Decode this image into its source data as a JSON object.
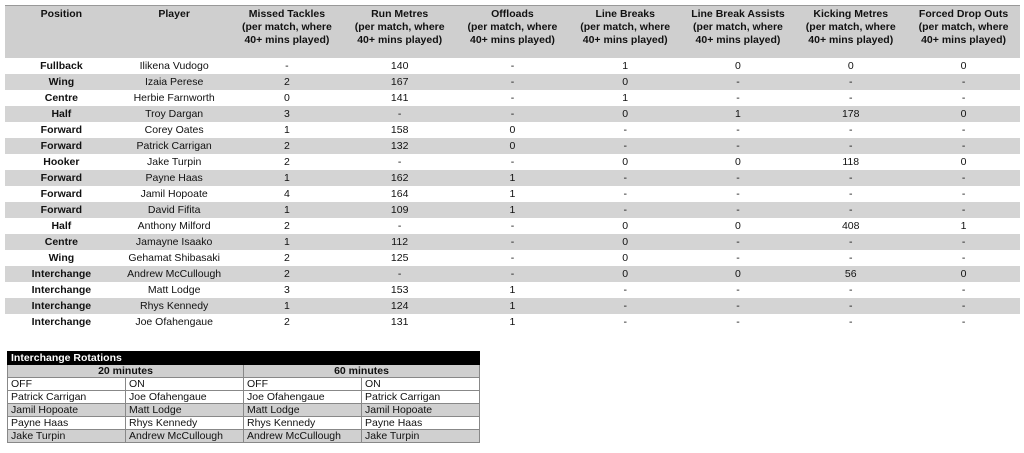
{
  "stats": {
    "headers": [
      "Position",
      "Player",
      "Missed Tackles\n(per match, where\n40+ mins played)",
      "Run Metres\n(per match, where\n40+ mins played)",
      "Offloads\n(per match, where\n40+ mins played)",
      "Line Breaks\n(per match, where\n40+ mins played)",
      "Line Break Assists\n(per match, where\n40+ mins played)",
      "Kicking Metres\n(per match, where\n40+ mins played)",
      "Forced Drop Outs\n(per match, where\n40+ mins played)"
    ],
    "rows": [
      [
        "Fullback",
        "Ilikena Vudogo",
        "-",
        "140",
        "-",
        "1",
        "0",
        "0",
        "0"
      ],
      [
        "Wing",
        "Izaia Perese",
        "2",
        "167",
        "-",
        "0",
        "-",
        "-",
        "-"
      ],
      [
        "Centre",
        "Herbie Farnworth",
        "0",
        "141",
        "-",
        "1",
        "-",
        "-",
        "-"
      ],
      [
        "Half",
        "Troy Dargan",
        "3",
        "-",
        "-",
        "0",
        "1",
        "178",
        "0"
      ],
      [
        "Forward",
        "Corey Oates",
        "1",
        "158",
        "0",
        "-",
        "-",
        "-",
        "-"
      ],
      [
        "Forward",
        "Patrick Carrigan",
        "2",
        "132",
        "0",
        "-",
        "-",
        "-",
        "-"
      ],
      [
        "Hooker",
        "Jake Turpin",
        "2",
        "-",
        "-",
        "0",
        "0",
        "118",
        "0"
      ],
      [
        "Forward",
        "Payne Haas",
        "1",
        "162",
        "1",
        "-",
        "-",
        "-",
        "-"
      ],
      [
        "Forward",
        "Jamil Hopoate",
        "4",
        "164",
        "1",
        "-",
        "-",
        "-",
        "-"
      ],
      [
        "Forward",
        "David Fifita",
        "1",
        "109",
        "1",
        "-",
        "-",
        "-",
        "-"
      ],
      [
        "Half",
        "Anthony Milford",
        "2",
        "-",
        "-",
        "0",
        "0",
        "408",
        "1"
      ],
      [
        "Centre",
        "Jamayne Isaako",
        "1",
        "112",
        "-",
        "0",
        "-",
        "-",
        "-"
      ],
      [
        "Wing",
        "Gehamat Shibasaki",
        "2",
        "125",
        "-",
        "0",
        "-",
        "-",
        "-"
      ],
      [
        "Interchange",
        "Andrew McCullough",
        "2",
        "-",
        "-",
        "0",
        "0",
        "56",
        "0"
      ],
      [
        "Interchange",
        "Matt Lodge",
        "3",
        "153",
        "1",
        "-",
        "-",
        "-",
        "-"
      ],
      [
        "Interchange",
        "Rhys Kennedy",
        "1",
        "124",
        "1",
        "-",
        "-",
        "-",
        "-"
      ],
      [
        "Interchange",
        "Joe Ofahengaue",
        "2",
        "131",
        "1",
        "-",
        "-",
        "-",
        "-"
      ]
    ]
  },
  "rotations": {
    "title": "Interchange Rotations",
    "periods": [
      "20 minutes",
      "60 minutes"
    ],
    "columns": [
      "OFF",
      "ON",
      "OFF",
      "ON"
    ],
    "rows": [
      [
        "Patrick Carrigan",
        "Joe Ofahengaue",
        "Joe Ofahengaue",
        "Patrick Carrigan"
      ],
      [
        "Jamil Hopoate",
        "Matt Lodge",
        "Matt Lodge",
        "Jamil Hopoate"
      ],
      [
        "Payne Haas",
        "Rhys Kennedy",
        "Rhys Kennedy",
        "Payne Haas"
      ],
      [
        "Jake Turpin",
        "Andrew McCullough",
        "Andrew McCullough",
        "Jake Turpin"
      ]
    ]
  }
}
